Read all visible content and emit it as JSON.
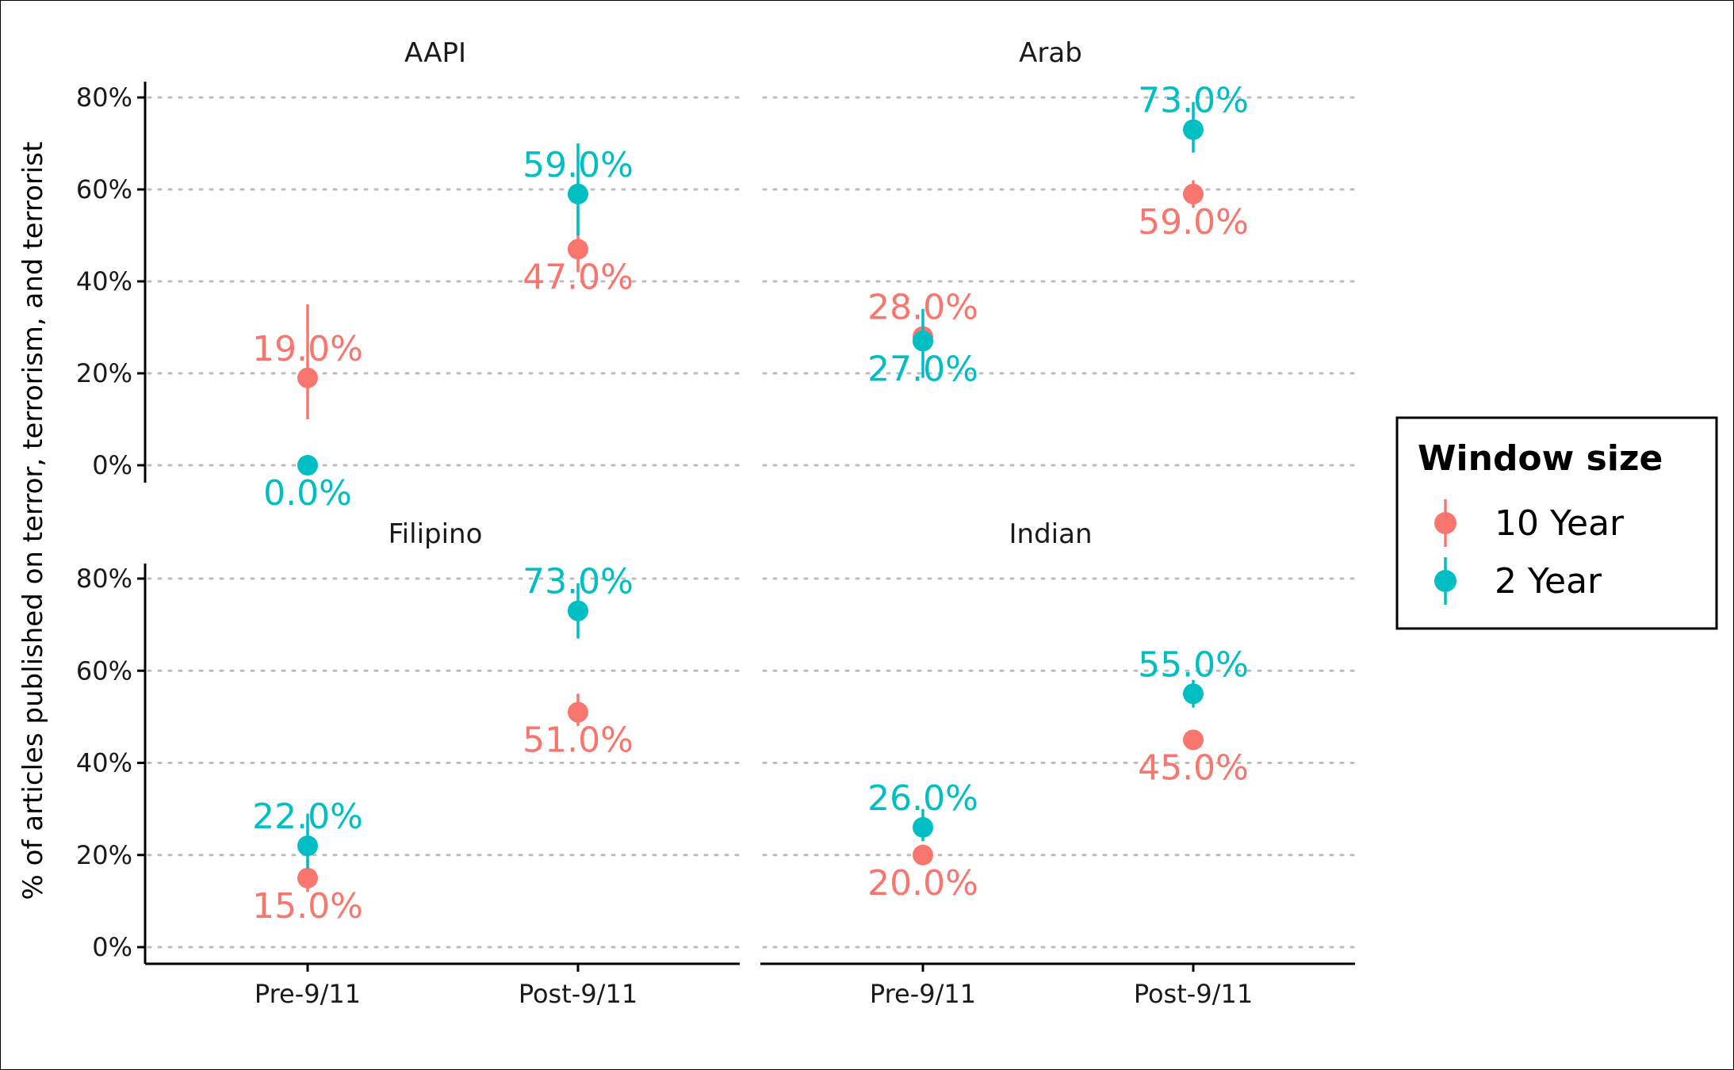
{
  "chart_data": {
    "type": "scatter",
    "ylabel": "% of articles published on terror, terrorism, and terrorist",
    "y_ticks": [
      "0%",
      "20%",
      "40%",
      "60%",
      "80%"
    ],
    "ylim": [
      0,
      80
    ],
    "categories": [
      "Pre-9/11",
      "Post-9/11"
    ],
    "legend": {
      "title": "Window size",
      "placement": "right",
      "entries": [
        {
          "name": "10 Year",
          "color": "#F8766D"
        },
        {
          "name": "2 Year",
          "color": "#00BFC4"
        }
      ]
    },
    "grid": "horizontal dotted",
    "panels": [
      {
        "title": "AAPI",
        "series": [
          {
            "name": "10 Year",
            "values": [
              19.0,
              47.0
            ],
            "labels": [
              "19.0%",
              "47.0%"
            ],
            "lower": [
              10,
              42
            ],
            "upper": [
              35,
              56
            ]
          },
          {
            "name": "2 Year",
            "values": [
              0.0,
              59.0
            ],
            "labels": [
              "0.0%",
              "59.0%"
            ],
            "lower": [
              0,
              50
            ],
            "upper": [
              0,
              70
            ]
          }
        ]
      },
      {
        "title": "Arab",
        "series": [
          {
            "name": "10 Year",
            "values": [
              28.0,
              59.0
            ],
            "labels": [
              "28.0%",
              "59.0%"
            ],
            "lower": [
              25,
              56
            ],
            "upper": [
              31,
              62
            ]
          },
          {
            "name": "2 Year",
            "values": [
              27.0,
              73.0
            ],
            "labels": [
              "27.0%",
              "73.0%"
            ],
            "lower": [
              19,
              68
            ],
            "upper": [
              34,
              79
            ]
          }
        ]
      },
      {
        "title": "Filipino",
        "series": [
          {
            "name": "10 Year",
            "values": [
              15.0,
              51.0
            ],
            "labels": [
              "15.0%",
              "51.0%"
            ],
            "lower": [
              12,
              48
            ],
            "upper": [
              19,
              55
            ]
          },
          {
            "name": "2 Year",
            "values": [
              22.0,
              73.0
            ],
            "labels": [
              "22.0%",
              "73.0%"
            ],
            "lower": [
              17,
              67
            ],
            "upper": [
              29,
              79
            ]
          }
        ]
      },
      {
        "title": "Indian",
        "series": [
          {
            "name": "10 Year",
            "values": [
              20.0,
              45.0
            ],
            "labels": [
              "20.0%",
              "45.0%"
            ],
            "lower": [
              19,
              43
            ],
            "upper": [
              21,
              47
            ]
          },
          {
            "name": "2 Year",
            "values": [
              26.0,
              55.0
            ],
            "labels": [
              "26.0%",
              "55.0%"
            ],
            "lower": [
              23,
              52
            ],
            "upper": [
              30,
              58
            ]
          }
        ]
      }
    ]
  }
}
